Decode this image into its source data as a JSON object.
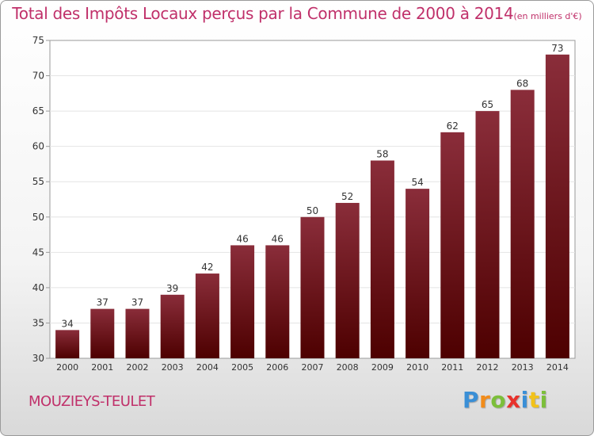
{
  "chart_data": {
    "type": "bar",
    "title": "Total des Impôts Locaux perçus par la Commune de 2000 à 2014",
    "subtitle": "(en milliers d'€)",
    "categories": [
      "2000",
      "2001",
      "2002",
      "2003",
      "2004",
      "2005",
      "2006",
      "2007",
      "2008",
      "2009",
      "2010",
      "2011",
      "2012",
      "2013",
      "2014"
    ],
    "values": [
      34,
      37,
      37,
      39,
      42,
      46,
      46,
      50,
      52,
      58,
      54,
      62,
      65,
      68,
      73
    ],
    "ylim": [
      30,
      75
    ],
    "yticks": [
      30,
      35,
      40,
      45,
      50,
      55,
      60,
      65,
      70,
      75
    ],
    "xlabel": "",
    "ylabel": "",
    "grid": true
  },
  "commune_name": "MOUZIEYS-TEULET",
  "logo": {
    "letters": [
      {
        "char": "P",
        "color": "#3a8fd6"
      },
      {
        "char": "r",
        "color": "#f28c1a"
      },
      {
        "char": "o",
        "color": "#7cbf3a"
      },
      {
        "char": "x",
        "color": "#e8322c"
      },
      {
        "char": "i",
        "color": "#3a8fd6"
      },
      {
        "char": "t",
        "color": "#f2c21a"
      },
      {
        "char": "i",
        "color": "#7cbf3a"
      }
    ]
  },
  "colors": {
    "bar_top": "#8a2d3a",
    "bar_bottom": "#4d0000",
    "accent": "#c0306a"
  }
}
